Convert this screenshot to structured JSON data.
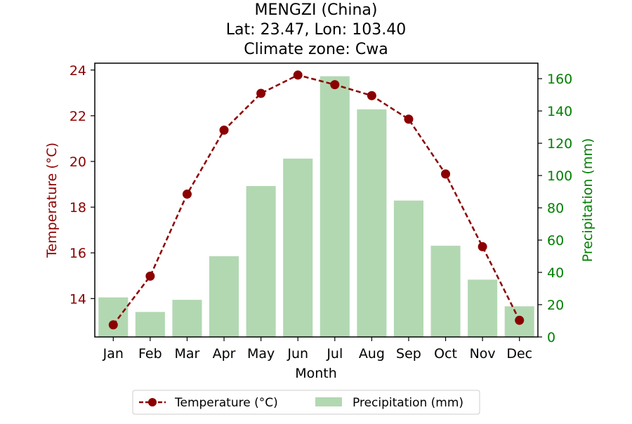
{
  "chart_data": {
    "type": "bar+line",
    "title_lines": [
      "MENGZI (China)",
      "Lat: 23.47, Lon: 103.40",
      "Climate zone: Cwa"
    ],
    "xlabel": "Month",
    "ylabel_left": "Temperature (°C)",
    "ylabel_right": "Precipitation (mm)",
    "categories": [
      "Jan",
      "Feb",
      "Mar",
      "Apr",
      "May",
      "Jun",
      "Jul",
      "Aug",
      "Sep",
      "Oct",
      "Nov",
      "Dec"
    ],
    "series": [
      {
        "name": "Temperature (°C)",
        "kind": "line",
        "axis": "left",
        "color": "#8b0000",
        "values": [
          12.85,
          14.98,
          18.57,
          21.37,
          22.98,
          23.78,
          23.36,
          22.88,
          21.85,
          19.45,
          16.27,
          13.05
        ]
      },
      {
        "name": "Precipitation (mm)",
        "kind": "bar",
        "axis": "right",
        "color": "#b2d8b2",
        "values": [
          24.5,
          15.5,
          23.0,
          50.0,
          93.5,
          110.5,
          161.5,
          141.0,
          84.5,
          56.5,
          35.5,
          19.0
        ]
      }
    ],
    "ylim_left": [
      12.32,
      24.3
    ],
    "yticks_left": [
      14,
      16,
      18,
      20,
      22,
      24
    ],
    "ylim_right": [
      0,
      169.6
    ],
    "yticks_right": [
      0,
      20,
      40,
      60,
      80,
      100,
      120,
      140,
      160
    ],
    "left_axis_color": "#8b0000",
    "right_axis_color": "#008000",
    "grid": false,
    "legend_position": "bottom-center"
  }
}
